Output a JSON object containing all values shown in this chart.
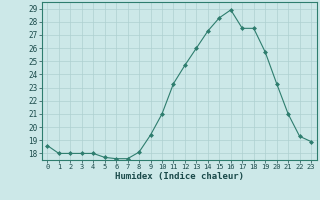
{
  "x": [
    0,
    1,
    2,
    3,
    4,
    5,
    6,
    7,
    8,
    9,
    10,
    11,
    12,
    13,
    14,
    15,
    16,
    17,
    18,
    19,
    20,
    21,
    22,
    23
  ],
  "y": [
    18.6,
    18.0,
    18.0,
    18.0,
    18.0,
    17.7,
    17.6,
    17.6,
    18.1,
    19.4,
    21.0,
    23.3,
    24.7,
    26.0,
    27.3,
    28.3,
    28.9,
    27.5,
    27.5,
    25.7,
    23.3,
    21.0,
    19.3,
    18.9
  ],
  "line_color": "#2e7d6e",
  "marker": "D",
  "markersize": 2.0,
  "bg_color": "#cce8e8",
  "grid_color": "#aed0d0",
  "xlabel": "Humidex (Indice chaleur)",
  "ylim": [
    17.5,
    29.5
  ],
  "yticks": [
    18,
    19,
    20,
    21,
    22,
    23,
    24,
    25,
    26,
    27,
    28,
    29
  ],
  "xticks": [
    0,
    1,
    2,
    3,
    4,
    5,
    6,
    7,
    8,
    9,
    10,
    11,
    12,
    13,
    14,
    15,
    16,
    17,
    18,
    19,
    20,
    21,
    22,
    23
  ]
}
